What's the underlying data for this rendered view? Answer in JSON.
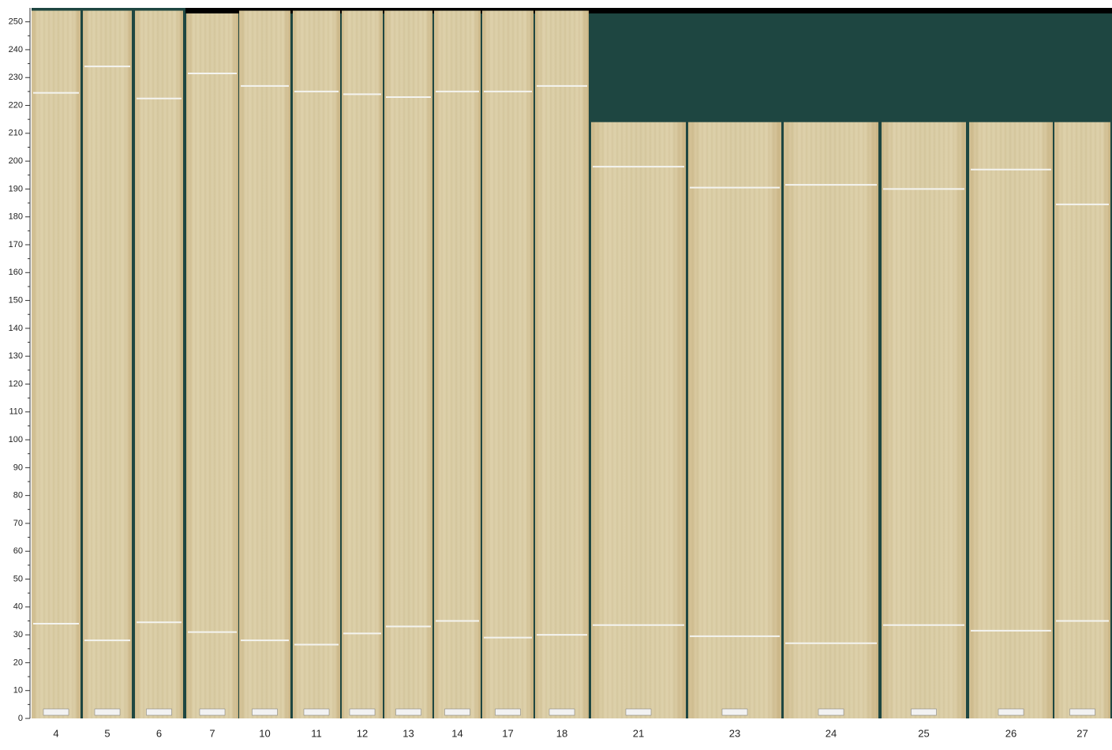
{
  "chart_data": {
    "type": "bar",
    "categories": [
      "4",
      "5",
      "6",
      "7",
      "10",
      "11",
      "12",
      "13",
      "14",
      "17",
      "18",
      "21",
      "23",
      "24",
      "25",
      "26",
      "27"
    ],
    "values": [
      254,
      254,
      254,
      253,
      254,
      254,
      254,
      254,
      254,
      254,
      254,
      214,
      214,
      214,
      214,
      214,
      214
    ],
    "trim_top": [
      224.5,
      234,
      222.5,
      231.5,
      227,
      225,
      224,
      223,
      225,
      225,
      227,
      198,
      190.5,
      191.5,
      190,
      197,
      184.5
    ],
    "trim_bottom": [
      34,
      28,
      34.5,
      31,
      28,
      26.5,
      30.5,
      33,
      35,
      29,
      30,
      33.5,
      29.5,
      27,
      33.5,
      31.5,
      35
    ],
    "color": "#d9cba2",
    "ylim": [
      0,
      255
    ],
    "yticks": [
      0,
      10,
      20,
      30,
      40,
      50,
      60,
      70,
      80,
      90,
      100,
      110,
      120,
      130,
      140,
      150,
      160,
      170,
      180,
      190,
      200,
      210,
      220,
      230,
      240,
      250
    ],
    "yminorticks": [
      5,
      15,
      25,
      35,
      45,
      55,
      65,
      75,
      85,
      95,
      105,
      115,
      125,
      135,
      145,
      155,
      165,
      175,
      185,
      195,
      205,
      215,
      225,
      235,
      245
    ]
  }
}
